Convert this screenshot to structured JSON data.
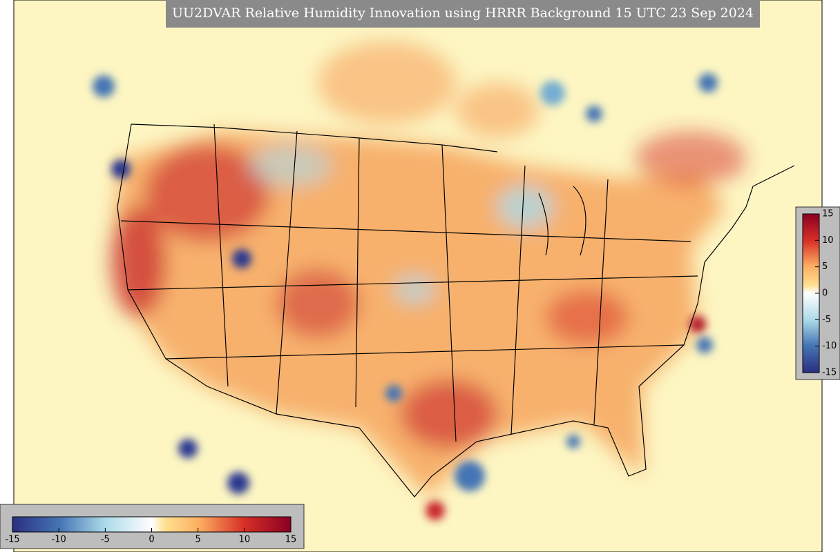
{
  "map": {
    "title": "UU2DVAR Relative Humidity Innovation using HRRR Background 15 UTC 23 Sep 2024",
    "colorbar_right": {
      "range": [
        -15,
        15
      ],
      "ticks": [
        -15,
        -10,
        -5,
        0,
        5,
        10,
        15
      ]
    },
    "colorbar_bottom": {
      "range": [
        -15,
        15
      ],
      "ticks": [
        -15,
        -10,
        -5,
        0,
        5,
        10,
        15
      ]
    }
  }
}
